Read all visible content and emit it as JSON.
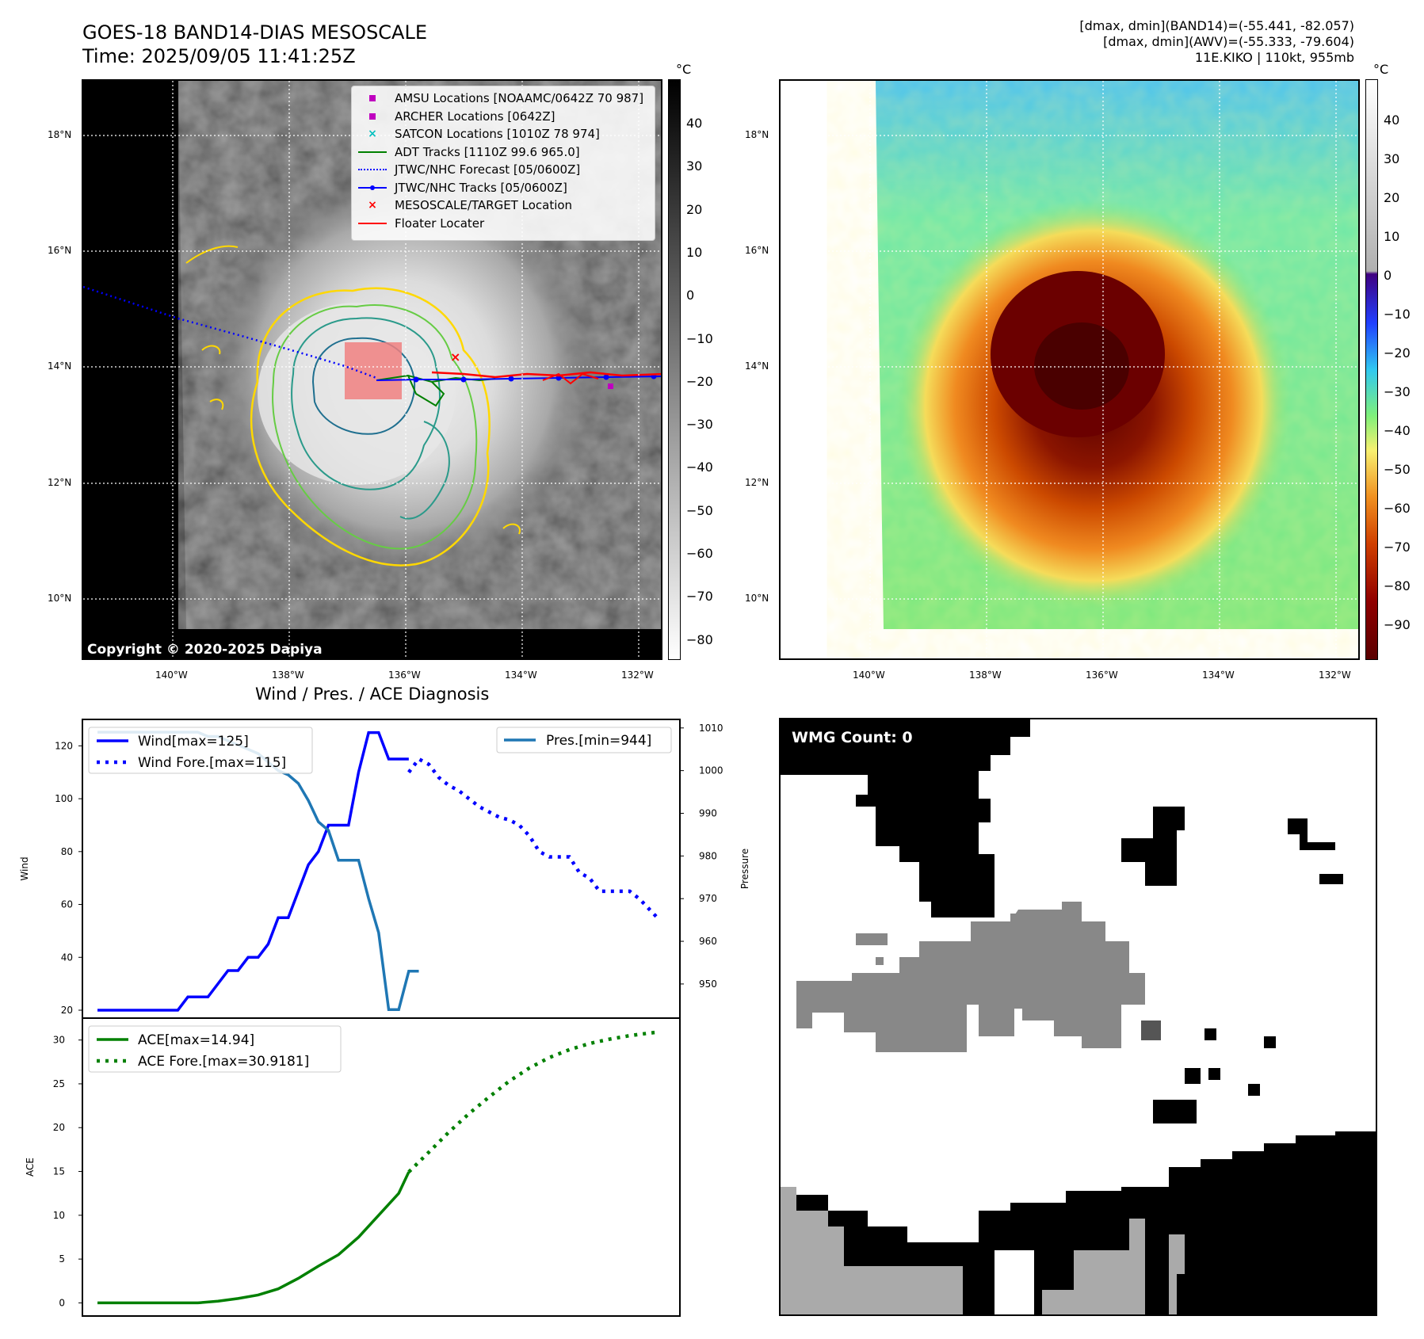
{
  "titles": {
    "main_line1": "GOES-18 BAND14-DIAS MESOSCALE",
    "main_line2": "Time: 2025/09/05 11:41:25Z",
    "right_line1": "[dmax, dmin](BAND14)=(-55.441, -82.057)",
    "right_line2": "[dmax, dmin](AWV)=(-55.333, -79.604)",
    "right_line3": "11E.KIKO | 110kt, 955mb",
    "diag_title": "Wind / Pres. / ACE Diagnosis",
    "copyright": "Copyright © 2020-2025 Dapiya",
    "wmg_count": "WMG Count: 0"
  },
  "map": {
    "lat_labels": [
      "18°N",
      "16°N",
      "14°N",
      "12°N",
      "10°N"
    ],
    "lon_labels": [
      "140°W",
      "138°W",
      "136°W",
      "134°W",
      "132°W"
    ]
  },
  "colorbar_left": {
    "unit": "°C",
    "ticks": [
      "40",
      "30",
      "20",
      "10",
      "0",
      "−10",
      "−20",
      "−30",
      "−40",
      "−50",
      "−60",
      "−70",
      "−80"
    ]
  },
  "colorbar_right": {
    "unit": "°C",
    "ticks": [
      "40",
      "30",
      "20",
      "10",
      "0",
      "−10",
      "−20",
      "−30",
      "−40",
      "−50",
      "−60",
      "−70",
      "−80",
      "−90"
    ]
  },
  "map_legend": [
    {
      "label": "AMSU Locations [NOAAMC/0642Z 70 987]",
      "symbol": "square",
      "color": "#bf00bf"
    },
    {
      "label": "ARCHER Locations [0642Z]",
      "symbol": "square",
      "color": "#bf00bf"
    },
    {
      "label": "SATCON Locations [1010Z 78 974]",
      "symbol": "x",
      "color": "#00bfbf"
    },
    {
      "label": "ADT Tracks [1110Z 99.6 965.0]",
      "symbol": "line",
      "color": "#008000"
    },
    {
      "label": "JTWC/NHC Forecast [05/0600Z]",
      "symbol": "dotted",
      "color": "#0000ff"
    },
    {
      "label": "JTWC/NHC Tracks [05/0600Z]",
      "symbol": "line-dot",
      "color": "#0000ff"
    },
    {
      "label": "MESOSCALE/TARGET Location",
      "symbol": "x",
      "color": "#ff0000"
    },
    {
      "label": "Floater Locater",
      "symbol": "line",
      "color": "#ff0000"
    }
  ],
  "colors": {
    "wind": "#0000ff",
    "pressure": "#1f77b4",
    "ace": "#008000"
  },
  "chart_data": [
    {
      "type": "line",
      "title": "Wind / Pres. / ACE Diagnosis",
      "ylabel": "Wind",
      "y2label": "Pressure",
      "ylim": [
        17,
        130
      ],
      "y2lim": [
        942,
        1012
      ],
      "yticks": [
        20,
        40,
        60,
        80,
        100,
        120
      ],
      "y2ticks": [
        950,
        960,
        970,
        980,
        990,
        1000,
        1010
      ],
      "legend": {
        "wind": "Wind[max=125]",
        "wind_fore": "Wind Fore.[max=115]",
        "pres": "Pres.[min=944]"
      },
      "series": [
        {
          "name": "Wind",
          "x": [
            0,
            1,
            2,
            3,
            4,
            5,
            6,
            7,
            8,
            9,
            10,
            11,
            12,
            13,
            14,
            15,
            16,
            17,
            18,
            19,
            20,
            21,
            22,
            23,
            24,
            25,
            26,
            27,
            28,
            29,
            30,
            31
          ],
          "values": [
            20,
            20,
            20,
            20,
            20,
            20,
            20,
            20,
            20,
            25,
            25,
            25,
            30,
            35,
            35,
            40,
            40,
            45,
            55,
            55,
            65,
            75,
            80,
            90,
            90,
            90,
            110,
            125,
            125,
            115,
            115,
            115
          ]
        },
        {
          "name": "Wind Fore.",
          "x": [
            31,
            32,
            33,
            34,
            35,
            36,
            37,
            38,
            39,
            40,
            41,
            42,
            43,
            44,
            45,
            46,
            47,
            48,
            49,
            50,
            51,
            52,
            53,
            54,
            55,
            56
          ],
          "values": [
            110,
            115,
            113,
            108,
            105,
            103,
            100,
            97,
            95,
            93,
            92,
            90,
            86,
            80,
            78,
            78,
            78,
            72,
            70,
            65,
            65,
            65,
            65,
            62,
            58,
            54
          ]
        },
        {
          "name": "Pres.",
          "x": [
            0,
            1,
            2,
            3,
            4,
            5,
            6,
            7,
            8,
            9,
            10,
            11,
            12,
            13,
            14,
            15,
            16,
            17,
            18,
            19,
            20,
            21,
            22,
            23,
            24,
            25,
            26,
            27,
            28,
            29,
            30,
            31,
            32
          ],
          "values": [
            1009,
            1009,
            1009,
            1009,
            1009,
            1009,
            1009,
            1009,
            1009,
            1009,
            1009,
            1008,
            1008,
            1007,
            1006,
            1005,
            1004,
            1002,
            1000,
            999,
            997,
            993,
            988,
            986,
            979,
            979,
            979,
            970,
            962,
            944,
            944,
            953,
            953
          ]
        }
      ]
    },
    {
      "type": "line",
      "ylabel": "ACE",
      "ylim": [
        -1.5,
        32.5
      ],
      "yticks": [
        0,
        5,
        10,
        15,
        20,
        25,
        30
      ],
      "legend": {
        "ace": "ACE[max=14.94]",
        "ace_fore": "ACE Fore.[max=30.9181]"
      },
      "series": [
        {
          "name": "ACE",
          "x": [
            0,
            2,
            4,
            6,
            8,
            10,
            12,
            14,
            16,
            18,
            20,
            22,
            24,
            26,
            28,
            30,
            31
          ],
          "values": [
            0,
            0,
            0,
            0,
            0,
            0,
            0.2,
            0.5,
            0.9,
            1.6,
            2.8,
            4.2,
            5.5,
            7.5,
            10,
            12.5,
            14.94
          ]
        },
        {
          "name": "ACE Fore.",
          "x": [
            31,
            33,
            35,
            37,
            39,
            41,
            43,
            45,
            47,
            49,
            51,
            53,
            55,
            56
          ],
          "values": [
            14.94,
            17.2,
            19.5,
            21.6,
            23.5,
            25.3,
            26.8,
            28,
            28.9,
            29.6,
            30.1,
            30.5,
            30.8,
            30.9181
          ]
        }
      ]
    }
  ]
}
